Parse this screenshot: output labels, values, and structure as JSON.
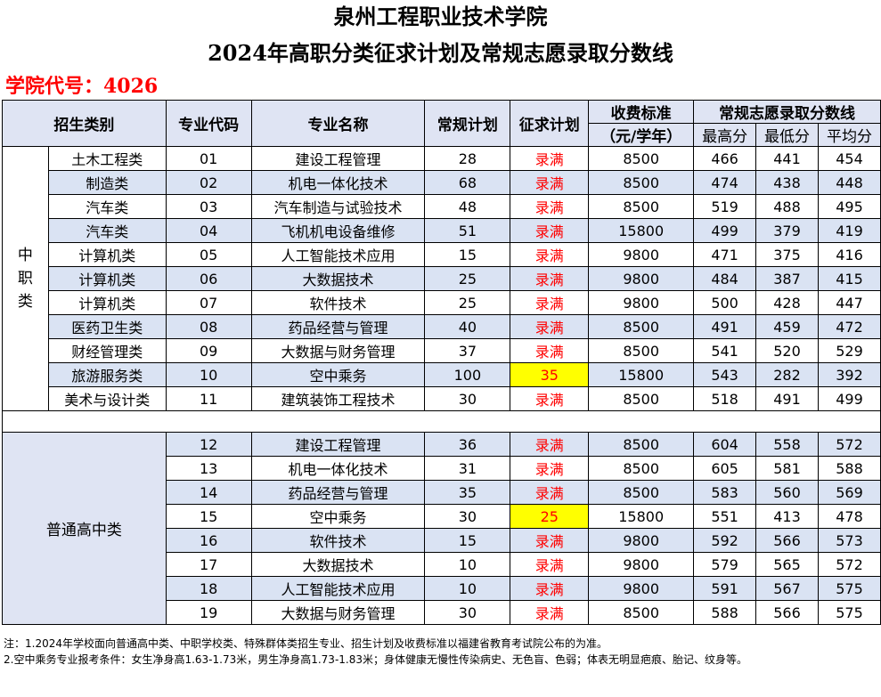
{
  "title_line1": "泉州工程职业技术学院",
  "title_line2": "2024年高职分类征求计划及常规志愿录取分数线",
  "college_code": "学院代号：4026",
  "headers": {
    "category": "招生类别",
    "major_code": "专业代码",
    "major_name": "专业名称",
    "regular_plan": "常规计划",
    "supplement_plan": "征求计划",
    "fee_line1": "收费标准",
    "fee_line2": "（元/学年）",
    "score_group": "常规志愿录取分数线",
    "max": "最高分",
    "min": "最低分",
    "avg": "平均分"
  },
  "group1_label": [
    "中",
    "职",
    "类"
  ],
  "group1_rows": [
    {
      "sub": "土木工程类",
      "code": "01",
      "name": "建设工程管理",
      "plan": "28",
      "supp": "录满",
      "fee": "8500",
      "max": "466",
      "min": "441",
      "avg": "454"
    },
    {
      "sub": "制造类",
      "code": "02",
      "name": "机电一体化技术",
      "plan": "68",
      "supp": "录满",
      "fee": "8500",
      "max": "474",
      "min": "438",
      "avg": "448"
    },
    {
      "sub": "汽车类",
      "code": "03",
      "name": "汽车制造与试验技术",
      "plan": "48",
      "supp": "录满",
      "fee": "8500",
      "max": "519",
      "min": "488",
      "avg": "495"
    },
    {
      "sub": "汽车类",
      "code": "04",
      "name": "飞机机电设备维修",
      "plan": "51",
      "supp": "录满",
      "fee": "15800",
      "max": "499",
      "min": "379",
      "avg": "419"
    },
    {
      "sub": "计算机类",
      "code": "05",
      "name": "人工智能技术应用",
      "plan": "15",
      "supp": "录满",
      "fee": "9800",
      "max": "471",
      "min": "375",
      "avg": "416"
    },
    {
      "sub": "计算机类",
      "code": "06",
      "name": "大数据技术",
      "plan": "25",
      "supp": "录满",
      "fee": "9800",
      "max": "484",
      "min": "387",
      "avg": "415"
    },
    {
      "sub": "计算机类",
      "code": "07",
      "name": "软件技术",
      "plan": "25",
      "supp": "录满",
      "fee": "9800",
      "max": "500",
      "min": "428",
      "avg": "447"
    },
    {
      "sub": "医药卫生类",
      "code": "08",
      "name": "药品经营与管理",
      "plan": "40",
      "supp": "录满",
      "fee": "8500",
      "max": "491",
      "min": "459",
      "avg": "472"
    },
    {
      "sub": "财经管理类",
      "code": "09",
      "name": "大数据与财务管理",
      "plan": "37",
      "supp": "录满",
      "fee": "8500",
      "max": "541",
      "min": "520",
      "avg": "529"
    },
    {
      "sub": "旅游服务类",
      "code": "10",
      "name": "空中乘务",
      "plan": "100",
      "supp": "35",
      "fee": "15800",
      "max": "543",
      "min": "282",
      "avg": "392"
    },
    {
      "sub": "美术与设计类",
      "code": "11",
      "name": "建筑装饰工程技术",
      "plan": "30",
      "supp": "录满",
      "fee": "8500",
      "max": "518",
      "min": "491",
      "avg": "499"
    }
  ],
  "group2_label": "普通高中类",
  "group2_rows": [
    {
      "code": "12",
      "name": "建设工程管理",
      "plan": "36",
      "supp": "录满",
      "fee": "8500",
      "max": "604",
      "min": "558",
      "avg": "572"
    },
    {
      "code": "13",
      "name": "机电一体化技术",
      "plan": "31",
      "supp": "录满",
      "fee": "8500",
      "max": "605",
      "min": "581",
      "avg": "588"
    },
    {
      "code": "14",
      "name": "药品经营与管理",
      "plan": "35",
      "supp": "录满",
      "fee": "8500",
      "max": "583",
      "min": "560",
      "avg": "569"
    },
    {
      "code": "15",
      "name": "空中乘务",
      "plan": "30",
      "supp": "25",
      "fee": "15800",
      "max": "551",
      "min": "413",
      "avg": "478"
    },
    {
      "code": "16",
      "name": "软件技术",
      "plan": "15",
      "supp": "录满",
      "fee": "9800",
      "max": "592",
      "min": "566",
      "avg": "573"
    },
    {
      "code": "17",
      "name": "大数据技术",
      "plan": "10",
      "supp": "录满",
      "fee": "9800",
      "max": "579",
      "min": "565",
      "avg": "572"
    },
    {
      "code": "18",
      "name": "人工智能技术应用",
      "plan": "10",
      "supp": "录满",
      "fee": "9800",
      "max": "591",
      "min": "567",
      "avg": "575"
    },
    {
      "code": "19",
      "name": "大数据与财务管理",
      "plan": "30",
      "supp": "录满",
      "fee": "8500",
      "max": "588",
      "min": "566",
      "avg": "575"
    }
  ],
  "notes": [
    "注：1.2024年学校面向普通高中类、中职学校类、特殊群体类招生专业、招生计划及收费标准以福建省教育考试院公布的为准。",
    "2.空中乘务专业报考条件：女生净身高1.63-1.73米，男生净身高1.73-1.83米；身体健康无慢性传染病史、无色盲、色弱；体表无明显疤痕、胎记、纹身等。"
  ],
  "colors": {
    "header_bg": "#dfe4f3",
    "alt_row_bg": "#dae3f3",
    "highlight": "#ffff00",
    "accent_red": "#ff0000"
  }
}
